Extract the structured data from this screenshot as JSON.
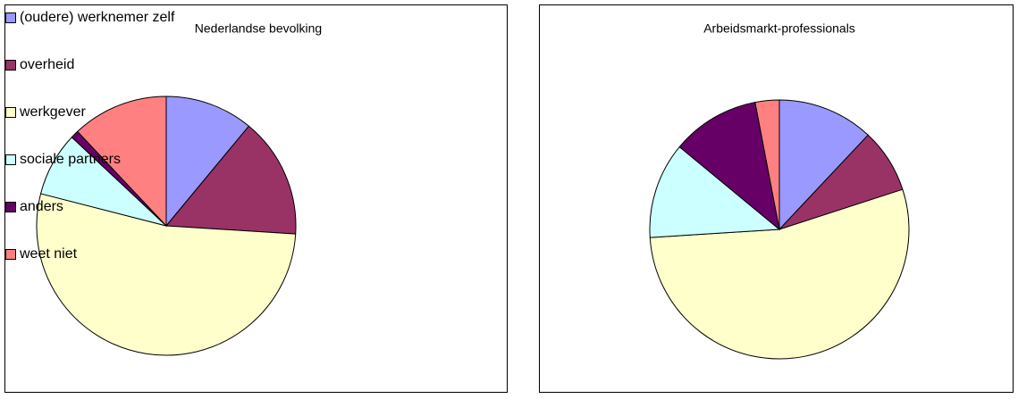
{
  "chart_data": [
    {
      "type": "pie",
      "title": "Nederlandse bevolking",
      "categories": [
        "(oudere) werknemer zelf",
        "overheid",
        "werkgever",
        "sociale partners",
        "anders",
        "weet niet"
      ],
      "values": [
        11,
        15,
        53,
        8,
        1,
        12
      ],
      "colors": [
        "#9999ff",
        "#993366",
        "#ffffcc",
        "#ccffff",
        "#660066",
        "#ff8080"
      ],
      "legend": "right"
    },
    {
      "type": "pie",
      "title": "Arbeidsmarkt-professionals",
      "categories": [
        "(oudere) werknemer zelf",
        "overheid",
        "werkgever",
        "sociale partners",
        "anders",
        "weet niet"
      ],
      "values": [
        12,
        8,
        54,
        12,
        11,
        3
      ],
      "colors": [
        "#9999ff",
        "#993366",
        "#ffffcc",
        "#ccffff",
        "#660066",
        "#ff8080"
      ]
    }
  ]
}
